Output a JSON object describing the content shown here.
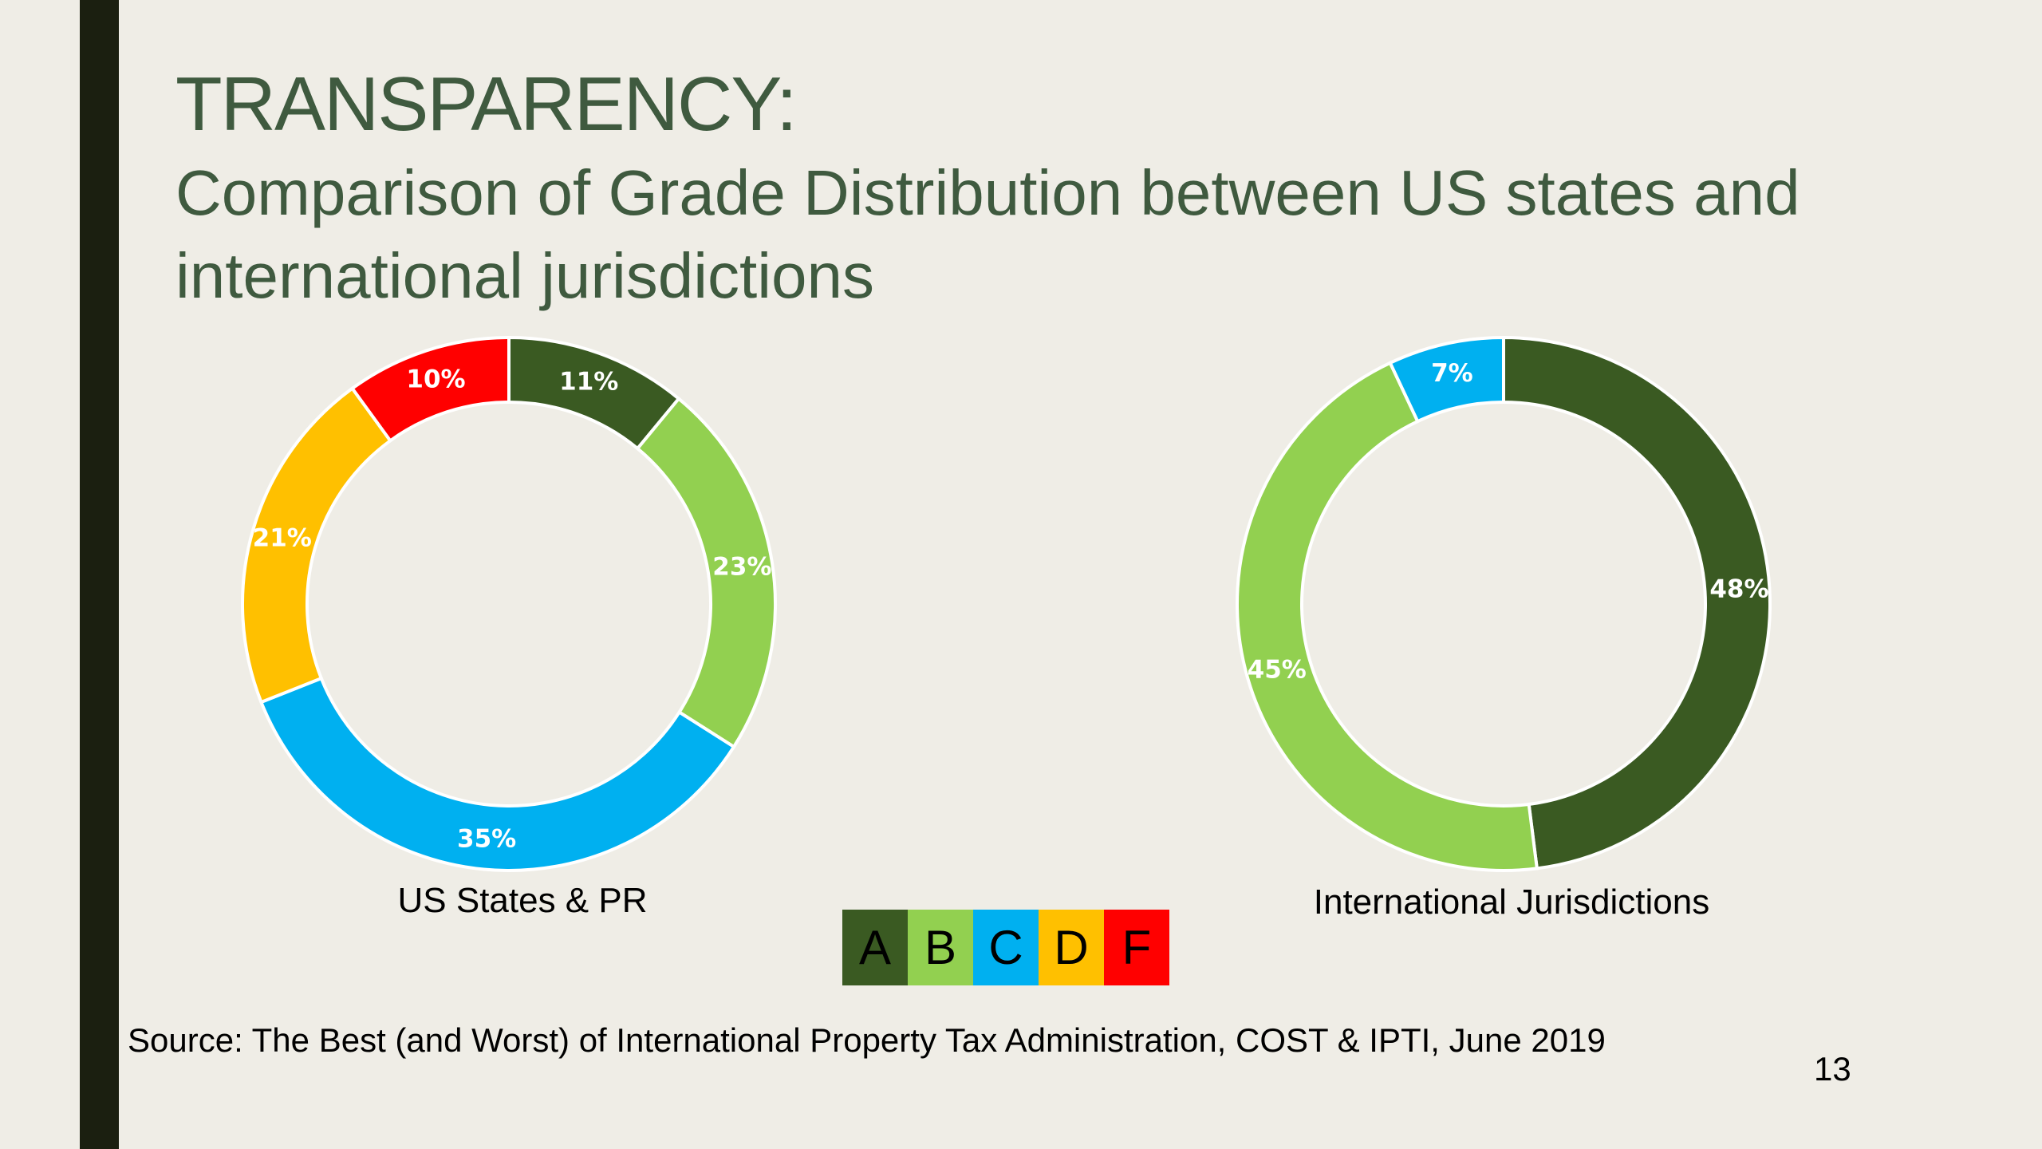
{
  "slide": {
    "title": "TRANSPARENCY:",
    "subtitle": "Comparison of Grade Distribution between US states and international jurisdictions",
    "source": "Source: The Best (and Worst) of International Property Tax Administration, COST & IPTI, June 2019",
    "page_number": "13"
  },
  "colors": {
    "A": "#3a5a22",
    "B": "#92d050",
    "C": "#00b0f0",
    "D": "#ffc000",
    "F": "#ff0000"
  },
  "legend": [
    {
      "grade": "A",
      "color": "#3a5a22"
    },
    {
      "grade": "B",
      "color": "#92d050"
    },
    {
      "grade": "C",
      "color": "#00b0f0"
    },
    {
      "grade": "D",
      "color": "#ffc000"
    },
    {
      "grade": "F",
      "color": "#ff0000"
    }
  ],
  "chart_data": [
    {
      "type": "pie",
      "title": "US States & PR",
      "slices": [
        {
          "label": "A",
          "value": 11,
          "display": "11%"
        },
        {
          "label": "B",
          "value": 23,
          "display": "23%"
        },
        {
          "label": "C",
          "value": 35,
          "display": "35%"
        },
        {
          "label": "D",
          "value": 21,
          "display": "21%"
        },
        {
          "label": "F",
          "value": 10,
          "display": "10%"
        }
      ]
    },
    {
      "type": "pie",
      "title": "International Jurisdictions",
      "slices": [
        {
          "label": "A",
          "value": 48,
          "display": "48%"
        },
        {
          "label": "B",
          "value": 45,
          "display": "45%"
        },
        {
          "label": "C",
          "value": 7,
          "display": "7%"
        }
      ]
    }
  ]
}
